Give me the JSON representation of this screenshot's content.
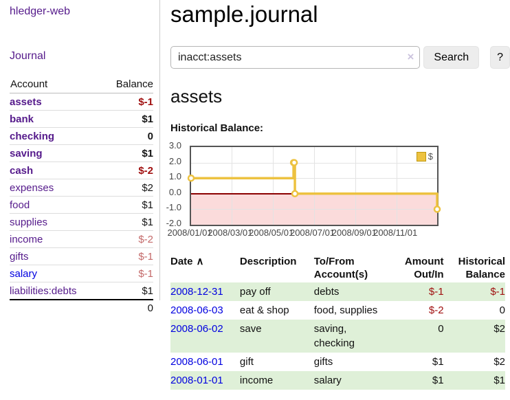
{
  "sidebar": {
    "brand": "hledger-web",
    "journal_link": "Journal",
    "accounts": {
      "headers": {
        "account": "Account",
        "balance": "Balance"
      },
      "rows": [
        {
          "name": "assets",
          "depth": 1,
          "bold": true,
          "balance": "$-1",
          "balance_style": "negative",
          "link_style": "visited"
        },
        {
          "name": "bank",
          "depth": 2,
          "bold": true,
          "balance": "$1",
          "balance_style": "positive",
          "link_style": "visited"
        },
        {
          "name": "checking",
          "depth": 3,
          "bold": true,
          "balance": "0",
          "balance_style": "positive",
          "link_style": "visited"
        },
        {
          "name": "saving",
          "depth": 3,
          "bold": true,
          "balance": "$1",
          "balance_style": "positive",
          "link_style": "visited"
        },
        {
          "name": "cash",
          "depth": 2,
          "bold": true,
          "balance": "$-2",
          "balance_style": "negative",
          "link_style": "visited"
        },
        {
          "name": "expenses",
          "depth": 1,
          "bold": false,
          "balance": "$2",
          "balance_style": "positive",
          "link_style": "visited"
        },
        {
          "name": "food",
          "depth": 2,
          "bold": false,
          "balance": "$1",
          "balance_style": "positive",
          "link_style": "visited"
        },
        {
          "name": "supplies",
          "depth": 2,
          "bold": false,
          "balance": "$1",
          "balance_style": "positive",
          "link_style": "visited"
        },
        {
          "name": "income",
          "depth": 1,
          "bold": false,
          "balance": "$-2",
          "balance_style": "negative-muted",
          "link_style": "visited"
        },
        {
          "name": "gifts",
          "depth": 2,
          "bold": false,
          "balance": "$-1",
          "balance_style": "negative-muted",
          "link_style": "visited"
        },
        {
          "name": "salary",
          "depth": 2,
          "bold": false,
          "balance": "$-1",
          "balance_style": "negative-muted",
          "link_style": "unvisited"
        },
        {
          "name": "liabilities:debts",
          "depth": 1,
          "bold": false,
          "balance": "$1",
          "balance_style": "positive",
          "link_style": "visited"
        }
      ],
      "total": "0"
    }
  },
  "header": {
    "title": "sample.journal"
  },
  "search": {
    "value": "inacct:assets",
    "clear_icon": "×",
    "search_button": "Search",
    "help_button": "?"
  },
  "account_page": {
    "heading": "assets",
    "chart_title": "Historical Balance:"
  },
  "chart_data": {
    "type": "line",
    "step": true,
    "title": "Historical Balance:",
    "x": [
      "2008-01-01",
      "2008-06-01",
      "2008-06-02",
      "2008-06-03",
      "2008-12-31"
    ],
    "series": [
      {
        "name": "$",
        "color": "#edc240",
        "values": [
          1,
          2,
          2,
          0,
          -1
        ]
      }
    ],
    "ylim": [
      -2,
      3
    ],
    "yticks": [
      "3.0",
      "2.0",
      "1.0",
      "0.0",
      "-1.0",
      "-2.0"
    ],
    "xticks": [
      "2008/01/01",
      "2008/03/01",
      "2008/05/01",
      "2008/07/01",
      "2008/09/01",
      "2008/11/01"
    ],
    "xrange": [
      "2008-01-01",
      "2008-12-31"
    ],
    "grid": true,
    "legend_position": "top-right",
    "negative_region_color": "#fbdbdb",
    "zero_line_color": "#8b0000"
  },
  "register": {
    "headers": [
      {
        "lines": [
          "Date"
        ],
        "sort_indicator": "∧",
        "align": "left"
      },
      {
        "lines": [
          "Description"
        ],
        "align": "left"
      },
      {
        "lines": [
          "To/From",
          "Account(s)"
        ],
        "align": "left"
      },
      {
        "lines": [
          "Amount",
          "Out/In"
        ],
        "align": "right"
      },
      {
        "lines": [
          "Historical",
          "Balance"
        ],
        "align": "right"
      }
    ],
    "rows": [
      {
        "date": "2008-12-31",
        "description": "pay off",
        "accounts": [
          "debts"
        ],
        "amount": "$-1",
        "amount_negative": true,
        "balance": "$-1",
        "balance_negative": true
      },
      {
        "date": "2008-06-03",
        "description": "eat & shop",
        "accounts": [
          "food, supplies"
        ],
        "amount": "$-2",
        "amount_negative": true,
        "balance": "0",
        "balance_negative": false
      },
      {
        "date": "2008-06-02",
        "description": "save",
        "accounts": [
          "saving,",
          "checking"
        ],
        "amount": "0",
        "amount_negative": false,
        "balance": "$2",
        "balance_negative": false
      },
      {
        "date": "2008-06-01",
        "description": "gift",
        "accounts": [
          "gifts"
        ],
        "amount": "$1",
        "amount_negative": false,
        "balance": "$2",
        "balance_negative": false
      },
      {
        "date": "2008-01-01",
        "description": "income",
        "accounts": [
          "salary"
        ],
        "amount": "$1",
        "amount_negative": false,
        "balance": "$1",
        "balance_negative": false
      }
    ]
  },
  "colors": {
    "link_visited": "#551a8b",
    "link_unvisited": "#0000e0",
    "negative": "#a01010",
    "negative_muted": "#c46a6a",
    "row_stripe": "#dff0d8",
    "chart_line": "#edc240"
  }
}
